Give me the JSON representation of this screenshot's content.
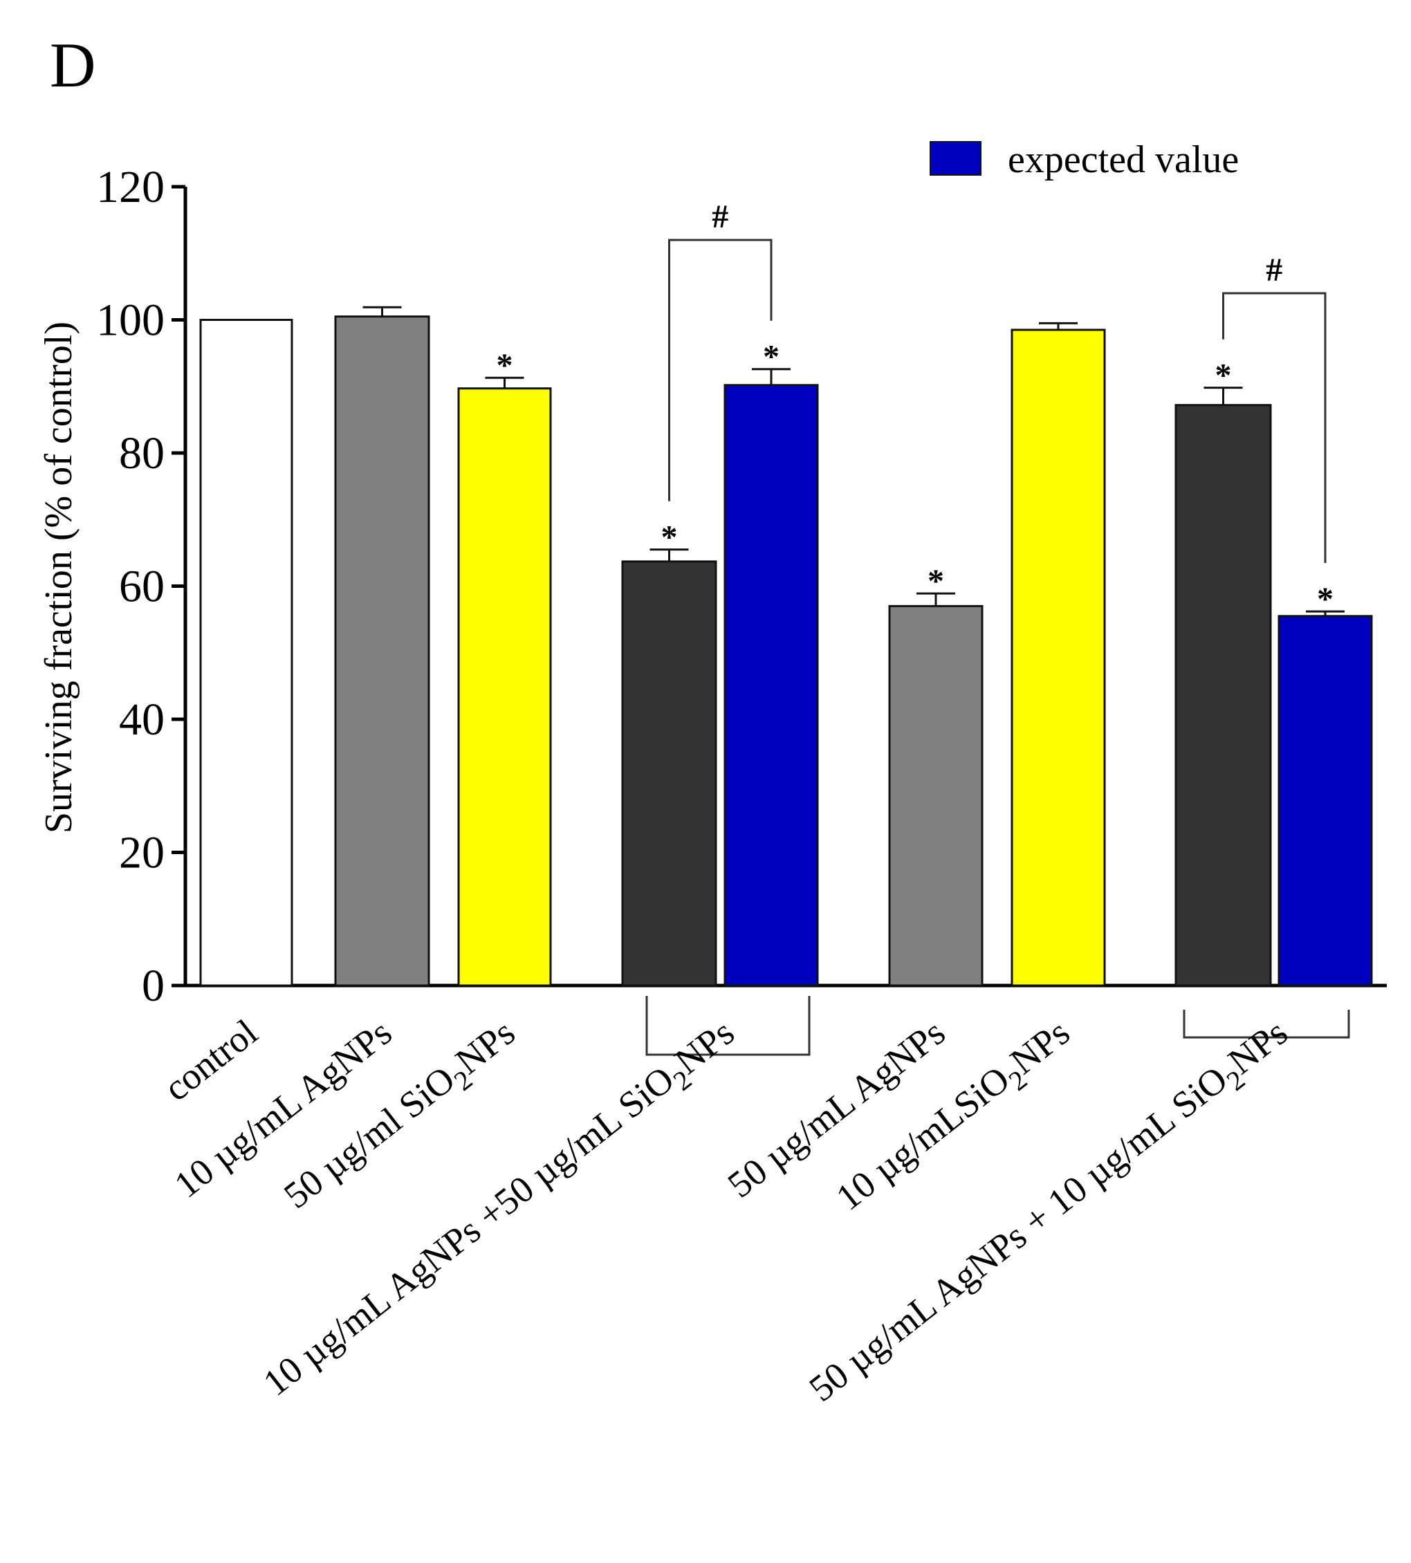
{
  "chart_data": {
    "type": "bar",
    "panel_label": "D",
    "ylabel": "Surviving fraction (% of control)",
    "ylim": [
      0,
      120
    ],
    "yticks": [
      0,
      20,
      40,
      60,
      80,
      100,
      120
    ],
    "legend": {
      "label": "expected value",
      "color": "#0000c0",
      "position": "top-right"
    },
    "bars": [
      {
        "label": "control",
        "value": 100,
        "error": 0,
        "color": "#ffffff",
        "star": ""
      },
      {
        "label": "10 µg/mL AgNPs",
        "value": 100.5,
        "error": 1.4,
        "color": "#808080",
        "star": ""
      },
      {
        "label_parts": [
          "50 µg/ml SiO",
          "2",
          "NPs"
        ],
        "value": 89.7,
        "error": 1.6,
        "color": "#ffff00",
        "star": "*"
      },
      {
        "label_parts": [
          "10 µg/mL AgNPs +50 µg/mL SiO",
          "2",
          "NPs"
        ],
        "value": 63.7,
        "error": 1.8,
        "color": "#333333",
        "star": "*"
      },
      {
        "label": "",
        "value": 90.2,
        "error": 2.4,
        "color": "#0000c0",
        "star": "*",
        "expected": true
      },
      {
        "label": "50 µg/mL AgNPs",
        "value": 57.0,
        "error": 1.9,
        "color": "#808080",
        "star": "*"
      },
      {
        "label_parts": [
          "10 µg/mLSiO",
          "2",
          "NPs"
        ],
        "value": 98.5,
        "error": 1.0,
        "color": "#ffff00",
        "star": ""
      },
      {
        "label_parts": [
          "50 µg/mL AgNPs + 10 µg/mL SiO",
          "2",
          "NPs"
        ],
        "value": 87.2,
        "error": 2.6,
        "color": "#333333",
        "star": "*"
      },
      {
        "label": "",
        "value": 55.5,
        "error": 0.7,
        "color": "#0000c0",
        "star": "*",
        "expected": true
      }
    ],
    "comparisons": [
      {
        "bars": [
          3,
          4
        ],
        "symbol": "#",
        "level": 112
      },
      {
        "bars": [
          7,
          8
        ],
        "symbol": "#",
        "level": 104
      }
    ],
    "annotations": [
      "*",
      "#"
    ]
  }
}
